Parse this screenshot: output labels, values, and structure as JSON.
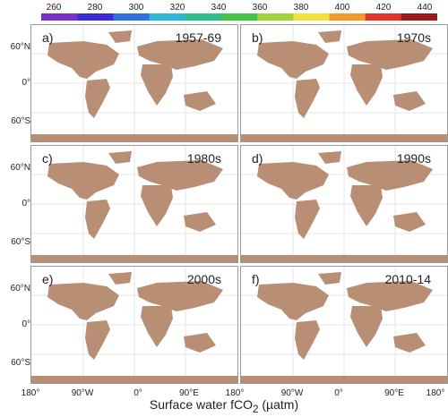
{
  "colorbar": {
    "ticks": [
      "260",
      "280",
      "300",
      "320",
      "340",
      "360",
      "380",
      "400",
      "420",
      "440"
    ],
    "colors": [
      "#7b2fc4",
      "#3a2bd6",
      "#2f6fe0",
      "#2fb7d8",
      "#2fbf8a",
      "#46c24a",
      "#a3d23a",
      "#f2e03a",
      "#f29b2a",
      "#e2352a",
      "#9b1a1a"
    ]
  },
  "axes": {
    "y_ticks": [
      "60°N",
      "0°",
      "60°S"
    ],
    "x_ticks": [
      "180°",
      "90°W",
      "0°",
      "90°E",
      "180°"
    ],
    "x_title": "Surface water fCO",
    "x_title_sub": "2",
    "x_title_unit": " (µatm)"
  },
  "panels": [
    {
      "letter": "a)",
      "period": "1957-69"
    },
    {
      "letter": "b)",
      "period": "1970s"
    },
    {
      "letter": "c)",
      "period": "1980s"
    },
    {
      "letter": "d)",
      "period": "1990s"
    },
    {
      "letter": "e)",
      "period": "2000s"
    },
    {
      "letter": "f)",
      "period": "2010-14"
    }
  ],
  "style": {
    "land": "#b88e74",
    "grid": "#e6e6e6"
  }
}
